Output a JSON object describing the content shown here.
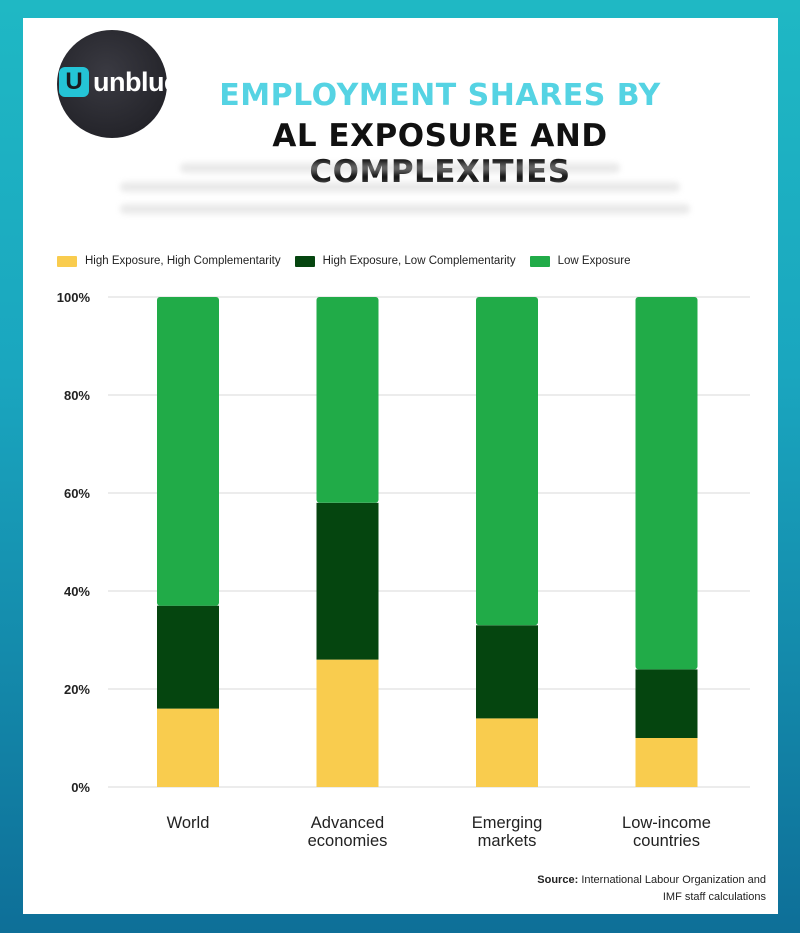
{
  "brand": {
    "logo_letter": "U",
    "logo_text": "unblue"
  },
  "title": {
    "line1": "EMPLOYMENT SHARES BY",
    "line2": "AL EXPOSURE AND COMPLEXITIES"
  },
  "source": {
    "label": "Source:",
    "line1": "International Labour Organization and",
    "line2": "IMF staff calculations"
  },
  "colors": {
    "high_exposure_high_comp": "#f9cc4e",
    "high_exposure_low_comp": "#05450f",
    "low_exposure": "#21ab48",
    "grid": "#d9d9d9"
  },
  "chart_data": {
    "type": "bar",
    "stacked": true,
    "title": "EMPLOYMENT SHARES BY AL EXPOSURE AND COMPLEXITIES",
    "categories": [
      "World",
      "Advanced economies",
      "Emerging markets",
      "Low-income countries"
    ],
    "category_lines": [
      [
        "World"
      ],
      [
        "Advanced",
        "economies"
      ],
      [
        "Emerging",
        "markets"
      ],
      [
        "Low-income",
        "countries"
      ]
    ],
    "series": [
      {
        "name": "High Exposure, High Complementarity",
        "values": [
          16,
          26,
          14,
          10
        ]
      },
      {
        "name": "High Exposure, Low Complementarity",
        "values": [
          21,
          32,
          19,
          14
        ]
      },
      {
        "name": "Low Exposure",
        "values": [
          63,
          42,
          67,
          76
        ]
      }
    ],
    "ylim": [
      0,
      100
    ],
    "yticks": [
      0,
      20,
      40,
      60,
      80,
      100
    ],
    "ytick_labels": [
      "0%",
      "20%",
      "40%",
      "60%",
      "80%",
      "100%"
    ],
    "grid": true,
    "legend_position": "top-left",
    "xlabel": "",
    "ylabel": ""
  }
}
